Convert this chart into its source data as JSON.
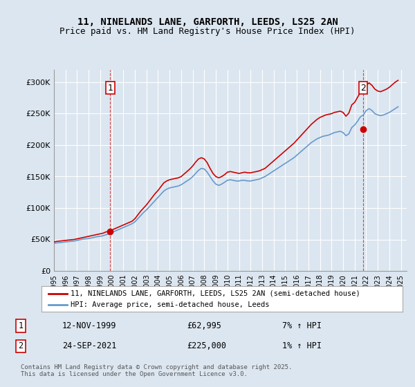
{
  "title_line1": "11, NINELANDS LANE, GARFORTH, LEEDS, LS25 2AN",
  "title_line2": "Price paid vs. HM Land Registry's House Price Index (HPI)",
  "bg_color": "#dce6f0",
  "plot_bg_color": "#dce6f0",
  "grid_color": "#ffffff",
  "line1_color": "#cc0000",
  "line2_color": "#6699cc",
  "ylabel_ticks": [
    "£0",
    "£50K",
    "£100K",
    "£150K",
    "£200K",
    "£250K",
    "£300K"
  ],
  "ytick_values": [
    0,
    50000,
    100000,
    150000,
    200000,
    250000,
    300000
  ],
  "ylim": [
    0,
    320000
  ],
  "xlim_start": 1995.0,
  "xlim_end": 2025.5,
  "xticks": [
    1995,
    1996,
    1997,
    1998,
    1999,
    2000,
    2001,
    2002,
    2003,
    2004,
    2005,
    2006,
    2007,
    2008,
    2009,
    2010,
    2011,
    2012,
    2013,
    2014,
    2015,
    2016,
    2017,
    2018,
    2019,
    2020,
    2021,
    2022,
    2023,
    2024,
    2025
  ],
  "marker1_x": 1999.87,
  "marker1_y": 62995,
  "marker1_label": "1",
  "marker2_x": 2021.73,
  "marker2_y": 225000,
  "marker2_label": "2",
  "legend_line1": "11, NINELANDS LANE, GARFORTH, LEEDS, LS25 2AN (semi-detached house)",
  "legend_line2": "HPI: Average price, semi-detached house, Leeds",
  "annotation1_num": "1",
  "annotation1_date": "12-NOV-1999",
  "annotation1_price": "£62,995",
  "annotation1_hpi": "7% ↑ HPI",
  "annotation2_num": "2",
  "annotation2_date": "24-SEP-2021",
  "annotation2_price": "£225,000",
  "annotation2_hpi": "1% ↑ HPI",
  "footer": "Contains HM Land Registry data © Crown copyright and database right 2025.\nThis data is licensed under the Open Government Licence v3.0.",
  "hpi_data": {
    "years": [
      1995.0,
      1995.25,
      1995.5,
      1995.75,
      1996.0,
      1996.25,
      1996.5,
      1996.75,
      1997.0,
      1997.25,
      1997.5,
      1997.75,
      1998.0,
      1998.25,
      1998.5,
      1998.75,
      1999.0,
      1999.25,
      1999.5,
      1999.75,
      2000.0,
      2000.25,
      2000.5,
      2000.75,
      2001.0,
      2001.25,
      2001.5,
      2001.75,
      2002.0,
      2002.25,
      2002.5,
      2002.75,
      2003.0,
      2003.25,
      2003.5,
      2003.75,
      2004.0,
      2004.25,
      2004.5,
      2004.75,
      2005.0,
      2005.25,
      2005.5,
      2005.75,
      2006.0,
      2006.25,
      2006.5,
      2006.75,
      2007.0,
      2007.25,
      2007.5,
      2007.75,
      2008.0,
      2008.25,
      2008.5,
      2008.75,
      2009.0,
      2009.25,
      2009.5,
      2009.75,
      2010.0,
      2010.25,
      2010.5,
      2010.75,
      2011.0,
      2011.25,
      2011.5,
      2011.75,
      2012.0,
      2012.25,
      2012.5,
      2012.75,
      2013.0,
      2013.25,
      2013.5,
      2013.75,
      2014.0,
      2014.25,
      2014.5,
      2014.75,
      2015.0,
      2015.25,
      2015.5,
      2015.75,
      2016.0,
      2016.25,
      2016.5,
      2016.75,
      2017.0,
      2017.25,
      2017.5,
      2017.75,
      2018.0,
      2018.25,
      2018.5,
      2018.75,
      2019.0,
      2019.25,
      2019.5,
      2019.75,
      2020.0,
      2020.25,
      2020.5,
      2020.75,
      2021.0,
      2021.25,
      2021.5,
      2021.75,
      2022.0,
      2022.25,
      2022.5,
      2022.75,
      2023.0,
      2023.25,
      2023.5,
      2023.75,
      2024.0,
      2024.25,
      2024.5,
      2024.75
    ],
    "values": [
      44000,
      44500,
      45000,
      45500,
      46000,
      46500,
      47000,
      47500,
      48500,
      49500,
      50500,
      51000,
      51500,
      52500,
      53500,
      54500,
      55000,
      56000,
      57500,
      59000,
      61000,
      63000,
      65000,
      67000,
      69000,
      71000,
      73000,
      75000,
      78000,
      83000,
      88000,
      93000,
      97000,
      102000,
      107000,
      112000,
      117000,
      122000,
      127000,
      130000,
      132000,
      133000,
      134000,
      135000,
      137000,
      140000,
      143000,
      146000,
      150000,
      155000,
      160000,
      163000,
      162000,
      157000,
      150000,
      143000,
      138000,
      136000,
      138000,
      141000,
      144000,
      145000,
      144000,
      143000,
      143000,
      144000,
      144000,
      143000,
      143000,
      144000,
      145000,
      146000,
      148000,
      150000,
      153000,
      156000,
      159000,
      162000,
      165000,
      168000,
      171000,
      174000,
      177000,
      180000,
      184000,
      188000,
      192000,
      196000,
      200000,
      204000,
      207000,
      210000,
      212000,
      214000,
      215000,
      216000,
      218000,
      220000,
      221000,
      222000,
      220000,
      215000,
      218000,
      228000,
      232000,
      238000,
      245000,
      248000,
      255000,
      258000,
      255000,
      250000,
      248000,
      247000,
      248000,
      250000,
      252000,
      255000,
      258000,
      261000
    ]
  },
  "price_data": {
    "years": [
      1995.0,
      1995.25,
      1995.5,
      1995.75,
      1996.0,
      1996.25,
      1996.5,
      1996.75,
      1997.0,
      1997.25,
      1997.5,
      1997.75,
      1998.0,
      1998.25,
      1998.5,
      1998.75,
      1999.0,
      1999.25,
      1999.5,
      1999.75,
      2000.0,
      2000.25,
      2000.5,
      2000.75,
      2001.0,
      2001.25,
      2001.5,
      2001.75,
      2002.0,
      2002.25,
      2002.5,
      2002.75,
      2003.0,
      2003.25,
      2003.5,
      2003.75,
      2004.0,
      2004.25,
      2004.5,
      2004.75,
      2005.0,
      2005.25,
      2005.5,
      2005.75,
      2006.0,
      2006.25,
      2006.5,
      2006.75,
      2007.0,
      2007.25,
      2007.5,
      2007.75,
      2008.0,
      2008.25,
      2008.5,
      2008.75,
      2009.0,
      2009.25,
      2009.5,
      2009.75,
      2010.0,
      2010.25,
      2010.5,
      2010.75,
      2011.0,
      2011.25,
      2011.5,
      2011.75,
      2012.0,
      2012.25,
      2012.5,
      2012.75,
      2013.0,
      2013.25,
      2013.5,
      2013.75,
      2014.0,
      2014.25,
      2014.5,
      2014.75,
      2015.0,
      2015.25,
      2015.5,
      2015.75,
      2016.0,
      2016.25,
      2016.5,
      2016.75,
      2017.0,
      2017.25,
      2017.5,
      2017.75,
      2018.0,
      2018.25,
      2018.5,
      2018.75,
      2019.0,
      2019.25,
      2019.5,
      2019.75,
      2020.0,
      2020.25,
      2020.5,
      2020.75,
      2021.0,
      2021.25,
      2021.5,
      2021.75,
      2022.0,
      2022.25,
      2022.5,
      2022.75,
      2023.0,
      2023.25,
      2023.5,
      2023.75,
      2024.0,
      2024.25,
      2024.5,
      2024.75
    ],
    "values": [
      46000,
      47000,
      47500,
      48000,
      48500,
      49000,
      49500,
      50000,
      51000,
      52000,
      53000,
      54000,
      55000,
      56000,
      57000,
      58000,
      59000,
      60000,
      62000,
      63000,
      65000,
      67000,
      69000,
      71000,
      73000,
      75000,
      77000,
      79000,
      83000,
      89000,
      95000,
      100000,
      105000,
      111000,
      117000,
      123000,
      128000,
      134000,
      140000,
      143000,
      145000,
      146000,
      147000,
      148000,
      150000,
      154000,
      158000,
      162000,
      167000,
      173000,
      178000,
      180000,
      178000,
      172000,
      163000,
      155000,
      150000,
      148000,
      150000,
      153000,
      157000,
      158000,
      157000,
      156000,
      155000,
      156000,
      157000,
      156000,
      156000,
      157000,
      158000,
      159000,
      161000,
      163000,
      167000,
      171000,
      175000,
      179000,
      183000,
      187000,
      191000,
      195000,
      199000,
      203000,
      208000,
      213000,
      218000,
      223000,
      228000,
      233000,
      237000,
      241000,
      244000,
      246000,
      248000,
      249000,
      250000,
      252000,
      253000,
      254000,
      252000,
      246000,
      251000,
      264000,
      268000,
      276000,
      284000,
      287000,
      295000,
      299000,
      295000,
      289000,
      286000,
      285000,
      287000,
      289000,
      292000,
      296000,
      300000,
      303000
    ]
  }
}
